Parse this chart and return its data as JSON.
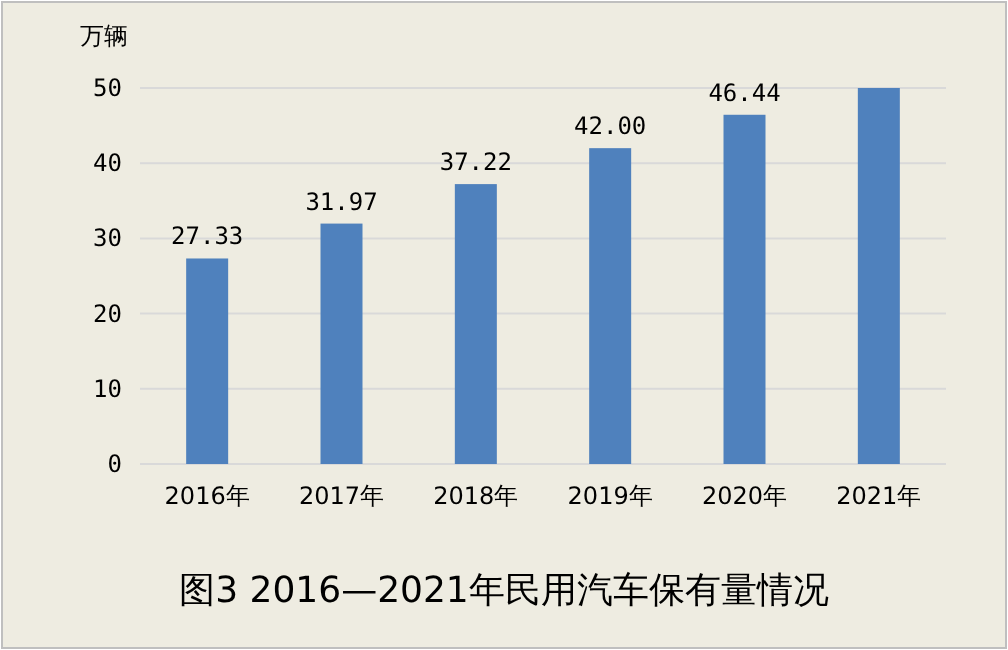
{
  "chart_data": {
    "type": "bar",
    "title": "图3 2016—2021年民用汽车保有量情况",
    "ylabel": "万辆",
    "categories": [
      "2016年",
      "2017年",
      "2018年",
      "2019年",
      "2020年",
      "2021年"
    ],
    "values": [
      27.33,
      31.97,
      37.22,
      42.0,
      46.44,
      50
    ],
    "value_labels": [
      "27.33",
      "31.97",
      "37.22",
      "42.00",
      "46.44",
      null
    ],
    "color": "#4f81bd",
    "ylim": [
      0,
      50
    ],
    "yticks": [
      0,
      10,
      20,
      30,
      40,
      50
    ],
    "grid": "y"
  }
}
